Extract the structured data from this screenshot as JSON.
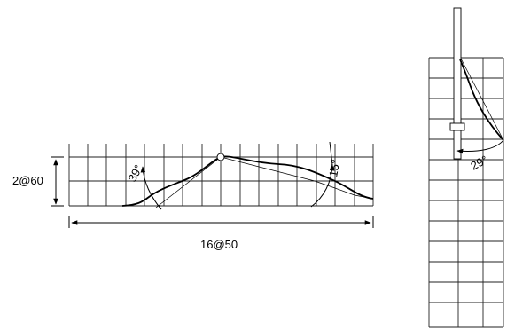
{
  "labels": {
    "height_dimension": "2@60",
    "width_dimension": "16@50",
    "angle_left": "39°",
    "angle_right": "15°",
    "angle_side": "29°"
  }
}
